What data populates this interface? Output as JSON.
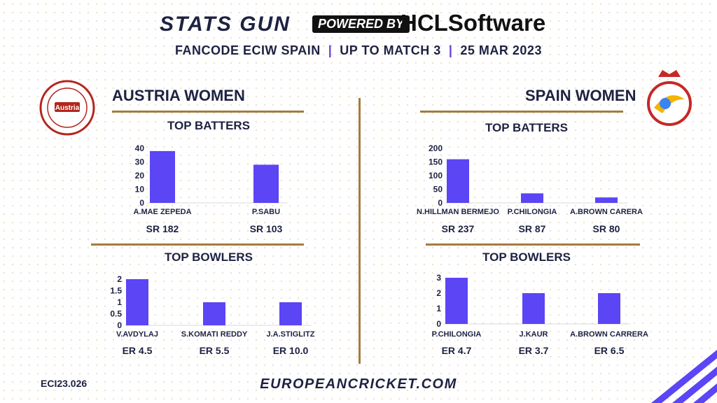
{
  "header": {
    "brand": "STATS GUN",
    "powered_by": "POWERED BY",
    "sponsor": "HCLSoftware",
    "subtitle_event": "FANCODE ECIW SPAIN",
    "subtitle_stage": "UP TO MATCH 3",
    "subtitle_date": "25 MAR 2023"
  },
  "teams": {
    "left": {
      "name": "AUSTRIA WOMEN",
      "logo_text": "Austria"
    },
    "right": {
      "name": "SPAIN WOMEN"
    }
  },
  "sections": {
    "batters": "TOP BATTERS",
    "bowlers": "TOP BOWLERS"
  },
  "footer": {
    "code": "ECI23.026",
    "url": "EUROPEANCRICKET.COM"
  },
  "colors": {
    "bar": "#5b45f5",
    "navy": "#1d2242",
    "gold": "#a27c3e"
  },
  "chart_data": [
    {
      "id": "austria-batters",
      "type": "bar",
      "title": "TOP BATTERS",
      "categories": [
        "A.MAE ZEPEDA",
        "P.SABU"
      ],
      "values": [
        38,
        28
      ],
      "sublabels": [
        "SR 182",
        "SR 103"
      ],
      "yticks": [
        0,
        10,
        20,
        30,
        40
      ],
      "ylim": [
        0,
        40
      ]
    },
    {
      "id": "austria-bowlers",
      "type": "bar",
      "title": "TOP BOWLERS",
      "categories": [
        "V.AVDYLAJ",
        "S.KOMATI REDDY",
        "J.A.STIGLITZ"
      ],
      "values": [
        2,
        1,
        1
      ],
      "sublabels": [
        "ER 4.5",
        "ER 5.5",
        "ER 10.0"
      ],
      "yticks": [
        0,
        0.5,
        1,
        1.5,
        2
      ],
      "ylim": [
        0,
        2
      ]
    },
    {
      "id": "spain-batters",
      "type": "bar",
      "title": "TOP BATTERS",
      "categories": [
        "N.HILLMAN BERMEJO",
        "P.CHILONGIA",
        "A.BROWN CARERA"
      ],
      "values": [
        160,
        35,
        20
      ],
      "sublabels": [
        "SR 237",
        "SR 87",
        "SR 80"
      ],
      "yticks": [
        0,
        50,
        100,
        150,
        200
      ],
      "ylim": [
        0,
        200
      ]
    },
    {
      "id": "spain-bowlers",
      "type": "bar",
      "title": "TOP BOWLERS",
      "categories": [
        "P.CHILONGIA",
        "J.KAUR",
        "A.BROWN CARRERA"
      ],
      "values": [
        3,
        2,
        2
      ],
      "sublabels": [
        "ER 4.7",
        "ER 3.7",
        "ER 6.5"
      ],
      "yticks": [
        0,
        1,
        2,
        3
      ],
      "ylim": [
        0,
        3
      ]
    }
  ]
}
